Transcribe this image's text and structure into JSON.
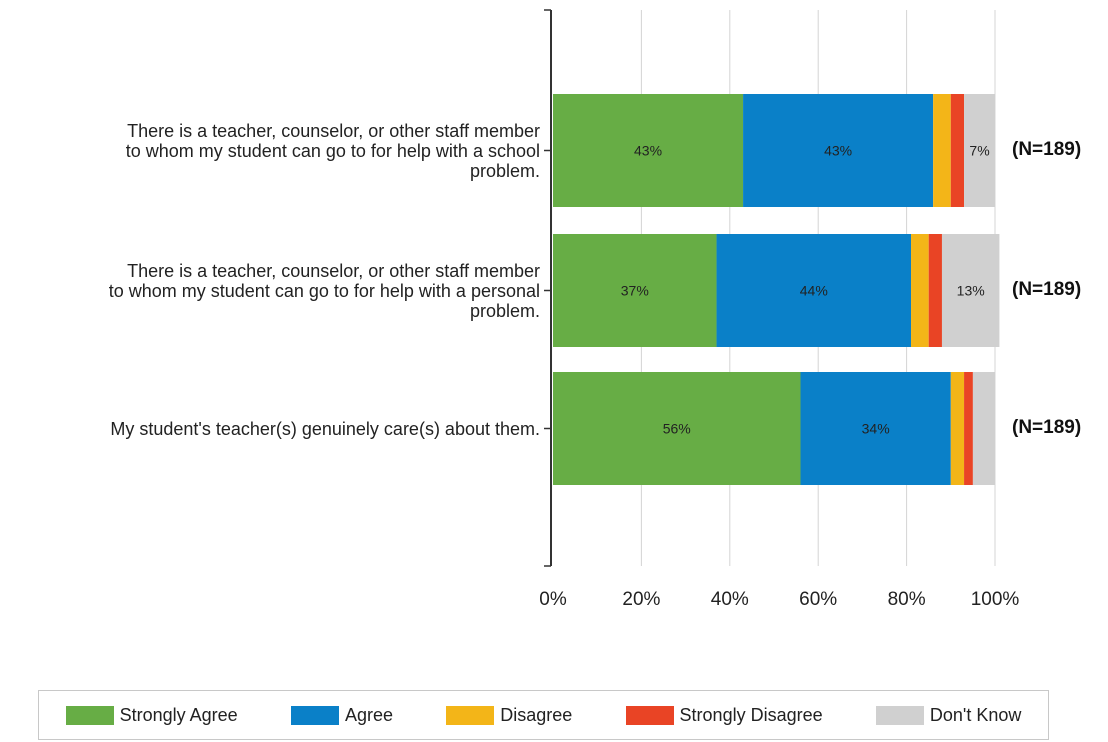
{
  "chart_data": {
    "type": "bar",
    "orientation": "horizontal",
    "stacked": true,
    "categories": [
      "There is a teacher, counselor, or other staff member\nto whom my student can go to for help with a school\nproblem.",
      "There is a teacher, counselor, or other staff member\nto whom my student can go to for help with a personal\nproblem.",
      "My student's teacher(s) genuinely care(s) about them."
    ],
    "n_labels": [
      "(N=189)",
      "(N=189)",
      "(N=189)"
    ],
    "series": [
      {
        "name": "Strongly Agree",
        "color": "#67ad45",
        "values": [
          43,
          37,
          56
        ],
        "labels": [
          "43%",
          "37%",
          "56%"
        ]
      },
      {
        "name": "Agree",
        "color": "#0a80c8",
        "values": [
          43,
          44,
          34
        ],
        "labels": [
          "43%",
          "44%",
          "34%"
        ]
      },
      {
        "name": "Disagree",
        "color": "#f3b518",
        "values": [
          4,
          4,
          3
        ],
        "labels": [
          "",
          "",
          ""
        ]
      },
      {
        "name": "Strongly Disagree",
        "color": "#e94425",
        "values": [
          3,
          3,
          2
        ],
        "labels": [
          "",
          "",
          ""
        ]
      },
      {
        "name": "Don't Know",
        "color": "#d0d0d0",
        "values": [
          7,
          13,
          5
        ],
        "labels": [
          "7%",
          "13%",
          ""
        ]
      }
    ],
    "xlim": [
      0,
      100
    ],
    "x_ticks": [
      "0%",
      "20%",
      "40%",
      "60%",
      "80%",
      "100%"
    ],
    "grid": true,
    "legend_position": "bottom"
  }
}
